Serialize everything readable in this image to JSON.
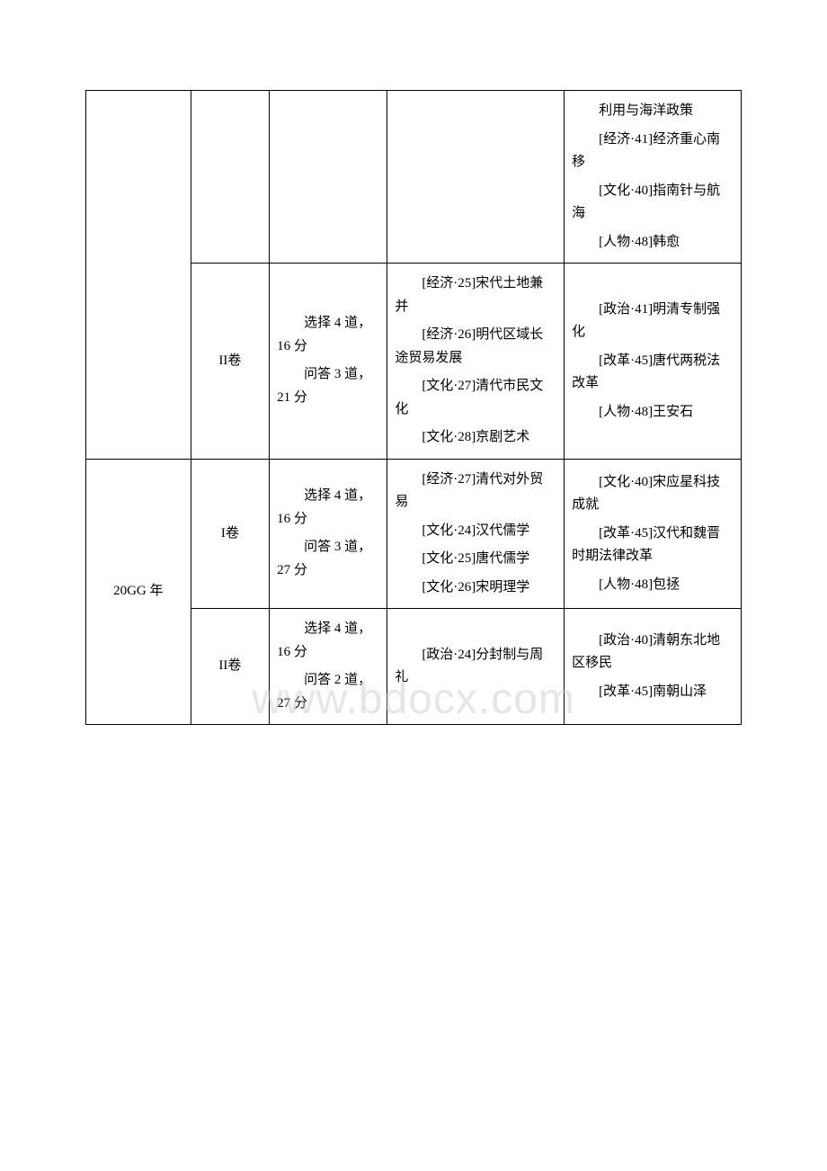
{
  "watermark": "www.bdocx.com",
  "table": {
    "columns": [
      "year",
      "volume",
      "stats",
      "topics",
      "notes"
    ],
    "col_widths": [
      "16%",
      "12%",
      "18%",
      "27%",
      "27%"
    ],
    "border_color": "#000000",
    "background_color": "#ffffff",
    "font_size": 15,
    "font_family": "SimSun",
    "text_color": "#000000",
    "rows": [
      {
        "year": "",
        "year_rowspan": 2,
        "volume": "",
        "stats": [],
        "topics": [],
        "notes": [
          "利用与海洋政策",
          "[经济·41]经济重心南移",
          "[文化·40]指南针与航海",
          "[人物·48]韩愈"
        ]
      },
      {
        "volume": "II卷",
        "stats": [
          "选择 4 道，16 分",
          "问答 3 道，21 分"
        ],
        "topics": [
          "[经济·25]宋代土地兼并",
          "[经济·26]明代区域长途贸易发展",
          "[文化·27]清代市民文化",
          "[文化·28]京剧艺术"
        ],
        "notes": [
          "[政治·41]明清专制强化",
          "[改革·45]唐代两税法改革",
          "[人物·48]王安石"
        ]
      },
      {
        "year": "20GG 年",
        "year_rowspan": 2,
        "volume": "I卷",
        "stats": [
          "选择 4 道，16 分",
          "问答 3 道，27 分"
        ],
        "topics": [
          "[经济·27]清代对外贸易",
          "[文化·24]汉代儒学",
          "[文化·25]唐代儒学",
          "[文化·26]宋明理学"
        ],
        "notes": [
          "[文化·40]宋应星科技成就",
          "[改革·45]汉代和魏晋时期法律改革",
          "[人物·48]包拯"
        ]
      },
      {
        "volume": "II卷",
        "stats": [
          "选择 4 道，16 分",
          "问答 2 道，27 分"
        ],
        "topics": [
          "[政治·24]分封制与周礼"
        ],
        "notes": [
          "[政治·40]清朝东北地区移民",
          "[改革·45]南朝山泽"
        ]
      }
    ]
  }
}
